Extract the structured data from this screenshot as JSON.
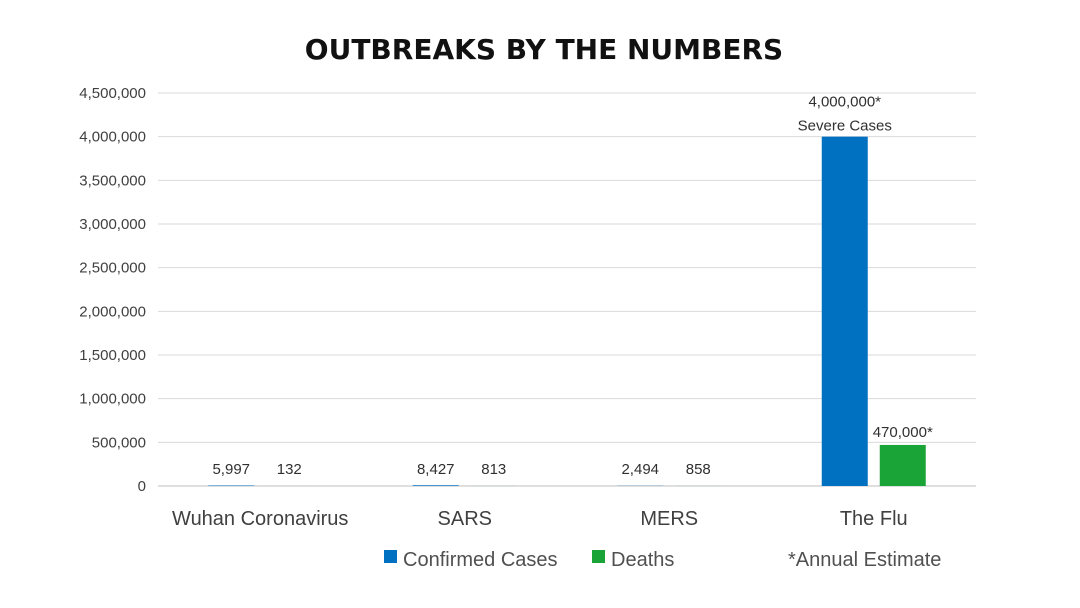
{
  "chart_data": {
    "type": "bar",
    "title": "OUTBREAKS BY THE NUMBERS",
    "xlabel": "",
    "ylabel": "",
    "categories": [
      "Wuhan Coronavirus",
      "SARS",
      "MERS",
      "The Flu"
    ],
    "series": [
      {
        "name": "Confirmed Cases",
        "color": "#0070C0",
        "values": [
          5997,
          8427,
          2494,
          4000000
        ],
        "labels": [
          "5,997",
          "8,427",
          "2,494",
          "4,000,000*"
        ]
      },
      {
        "name": "Deaths",
        "color": "#1AA336",
        "values": [
          132,
          813,
          858,
          470000
        ],
        "labels": [
          "132",
          "813",
          "858",
          "470,000*"
        ]
      }
    ],
    "annotations": {
      "flu_cases_sublabel": "Severe Cases",
      "footnote": "*Annual Estimate"
    },
    "ylim": [
      0,
      4500000
    ],
    "yticks": [
      0,
      500000,
      1000000,
      1500000,
      2000000,
      2500000,
      3000000,
      3500000,
      4000000,
      4500000
    ],
    "ytick_labels": [
      "0",
      "500,000",
      "1,000,000",
      "1,500,000",
      "2,000,000",
      "2,500,000",
      "3,000,000",
      "3,500,000",
      "4,000,000",
      "4,500,000"
    ],
    "grid": true,
    "legend_position": "bottom"
  }
}
